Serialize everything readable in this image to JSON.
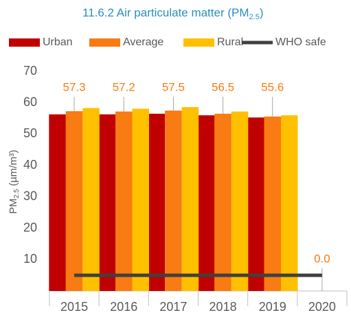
{
  "chart_data": {
    "type": "bar",
    "title_parts": [
      "11.6.2 Air particulate matter (PM",
      "2.5",
      ")"
    ],
    "y_label_parts": [
      "PM",
      "2.5",
      " (µm/m³)"
    ],
    "categories": [
      "2015",
      "2016",
      "2017",
      "2018",
      "2019",
      "2020"
    ],
    "series": [
      {
        "name": "Urban",
        "color": "#c00000",
        "values": [
          56.3,
          56.3,
          56.5,
          56.0,
          55.3,
          null
        ]
      },
      {
        "name": "Average",
        "color": "#f97b13",
        "values": [
          57.3,
          57.2,
          57.5,
          56.5,
          55.6,
          0
        ],
        "value_labels": [
          "57.3",
          "57.2",
          "57.5",
          "56.5",
          "55.6",
          "0.0"
        ]
      },
      {
        "name": "Rural",
        "color": "#ffc000",
        "values": [
          58.3,
          58.1,
          58.6,
          57.2,
          56.0,
          null
        ]
      },
      {
        "name": "WHO safe",
        "color": "#404040",
        "type": "line",
        "values": [
          5,
          5,
          5,
          5,
          5,
          5
        ]
      }
    ],
    "ylim": [
      0,
      70
    ],
    "yticks": [
      10,
      20,
      30,
      40,
      50,
      60,
      70
    ],
    "grid": false,
    "legend": "top"
  }
}
